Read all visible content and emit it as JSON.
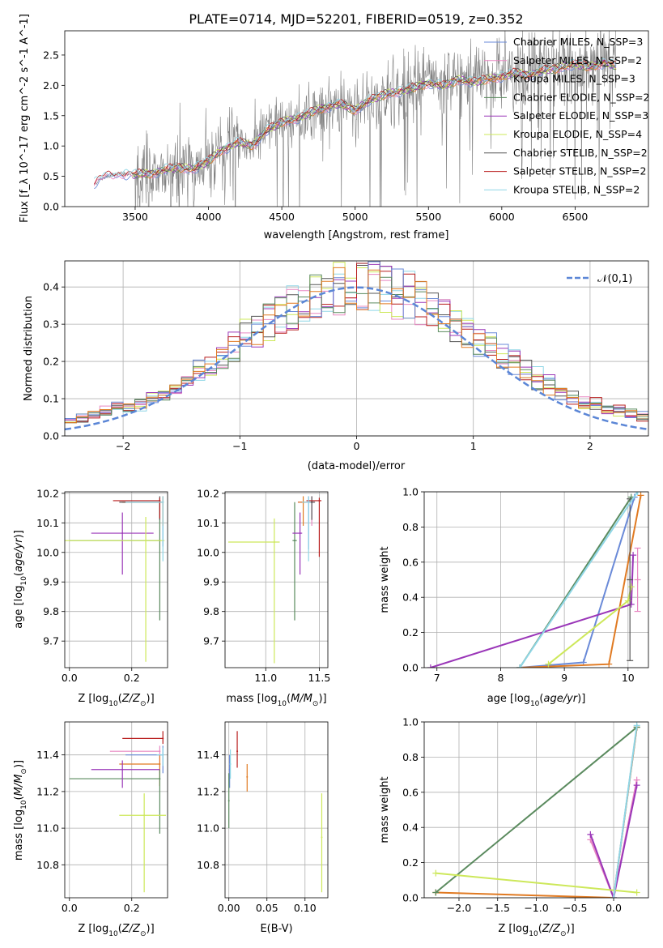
{
  "figure": {
    "title": "PLATE=0714, MJD=52201, FIBERID=0519, z=0.352"
  },
  "chart_data": [
    {
      "id": "spectrum",
      "type": "line",
      "xlabel": "wavelength [Angstrom, rest frame]",
      "ylabel": "Flux [f_λ 10^-17 erg cm^-2 s^-1 A^-1]",
      "xlim": [
        3020,
        7000
      ],
      "ylim": [
        0,
        2.9
      ],
      "xticks": [
        3500,
        4000,
        4500,
        5000,
        5500,
        6000,
        6500
      ],
      "yticks": [
        0.0,
        0.5,
        1.0,
        1.5,
        2.0,
        2.5
      ],
      "legend_position": "top-right",
      "data_color": "#808080",
      "model_x": [
        3220,
        3300,
        3400,
        3500,
        3600,
        3700,
        3800,
        3900,
        4000,
        4100,
        4200,
        4300,
        4400,
        4500,
        4600,
        4700,
        4800,
        4900,
        5000,
        5100,
        5200,
        5300,
        5400,
        5500,
        5600,
        5700,
        5800,
        5900,
        6000,
        6100,
        6200,
        6300,
        6400,
        6500,
        6600,
        6700,
        6780
      ],
      "model_y": [
        0.38,
        0.5,
        0.55,
        0.52,
        0.55,
        0.6,
        0.65,
        0.62,
        0.75,
        0.95,
        1.05,
        1.02,
        1.25,
        1.4,
        1.45,
        1.55,
        1.65,
        1.68,
        1.6,
        1.75,
        1.85,
        1.9,
        1.95,
        2.05,
        1.98,
        2.1,
        2.05,
        2.1,
        2.15,
        2.2,
        2.18,
        2.25,
        2.3,
        2.35,
        2.3,
        2.38,
        2.3
      ],
      "series": [
        {
          "name": "Chabrier MILES, N_SSP=3",
          "color": "#6a8ad8"
        },
        {
          "name": "Salpeter MILES, N_SSP=2",
          "color": "#e887c2"
        },
        {
          "name": "Kroupa MILES, N_SSP=3",
          "color": "#e07a22"
        },
        {
          "name": "Chabrier ELODIE, N_SSP=2",
          "color": "#5a8a5e"
        },
        {
          "name": "Salpeter ELODIE, N_SSP=3",
          "color": "#9a36b8"
        },
        {
          "name": "Kroupa ELODIE, N_SSP=4",
          "color": "#cde85a"
        },
        {
          "name": "Chabrier STELIB, N_SSP=2",
          "color": "#555555"
        },
        {
          "name": "Salpeter STELIB, N_SSP=2",
          "color": "#b81c1c"
        },
        {
          "name": "Kroupa STELIB, N_SSP=2",
          "color": "#8fd6e6"
        }
      ]
    },
    {
      "id": "residuals",
      "type": "line",
      "xlabel": "(data-model)/error",
      "ylabel": "Normed distribution",
      "xlim": [
        -2.5,
        2.5
      ],
      "ylim": [
        0,
        0.47
      ],
      "xticks": [
        -2,
        -1,
        0,
        1,
        2
      ],
      "yticks": [
        0.0,
        0.1,
        0.2,
        0.3,
        0.4
      ],
      "grid": true,
      "legend_position": "top-right",
      "gaussian_label": "𝒩(0,1)",
      "gaussian_color": "#5b86d6",
      "bin_width": 0.1,
      "hist_color_order": [
        "#8fd6e6",
        "#e887c2",
        "#cde85a",
        "#555555",
        "#9a36b8",
        "#b81c1c",
        "#6a8ad8",
        "#5a8a5e",
        "#e07a22"
      ]
    },
    {
      "id": "age_vs_Z",
      "type": "scatter",
      "xlabel": "Z [log10(Z/Z_sun)]",
      "ylabel": "age [log10(age/yr)]",
      "xlim": [
        -0.015,
        0.315
      ],
      "ylim": [
        9.61,
        10.205
      ],
      "xticks": [
        0.0,
        0.2
      ],
      "yticks": [
        9.7,
        9.8,
        9.9,
        10.0,
        10.1,
        10.2
      ],
      "grid": true,
      "points": [
        {
          "color": "#6a8ad8",
          "x": 0.3,
          "xerr": [
            0.13,
            0.0
          ],
          "y": 10.17,
          "yerr": [
            0.15,
            0.02
          ]
        },
        {
          "color": "#e887c2",
          "x": 0.3,
          "xerr": [
            0.13,
            0.0
          ],
          "y": 10.17,
          "yerr": [
            0.08,
            0.02
          ]
        },
        {
          "color": "#e07a22",
          "x": 0.3,
          "xerr": [
            0.13,
            0.0
          ],
          "y": 10.17,
          "yerr": [
            0.08,
            0.02
          ]
        },
        {
          "color": "#5a8a5e",
          "x": 0.29,
          "xerr": [
            0.29,
            0.0
          ],
          "y": 10.04,
          "yerr": [
            0.27,
            0.13
          ]
        },
        {
          "color": "#9a36b8",
          "x": 0.17,
          "xerr": [
            0.1,
            0.1
          ],
          "y": 10.065,
          "yerr": [
            0.14,
            0.07
          ]
        },
        {
          "color": "#cde85a",
          "x": 0.245,
          "xerr": [
            0.26,
            0.06
          ],
          "y": 10.04,
          "yerr": [
            0.41,
            0.08
          ]
        },
        {
          "color": "#555555",
          "x": 0.29,
          "xerr": [
            0.13,
            0.0
          ],
          "y": 10.17,
          "yerr": [
            0.06,
            0.02
          ]
        },
        {
          "color": "#b81c1c",
          "x": 0.29,
          "xerr": [
            0.15,
            0.0
          ],
          "y": 10.175,
          "yerr": [
            0.06,
            0.01
          ]
        },
        {
          "color": "#8fd6e6",
          "x": 0.3,
          "xerr": [
            0.12,
            0.0
          ],
          "y": 10.17,
          "yerr": [
            0.2,
            0.02
          ]
        }
      ]
    },
    {
      "id": "age_vs_mass",
      "type": "scatter",
      "xlabel": "mass [log10(M/M_sun)]",
      "xlim": [
        10.62,
        11.58
      ],
      "ylim": [
        9.61,
        10.205
      ],
      "xticks": [
        11.0,
        11.5
      ],
      "yticks": [
        9.7,
        9.8,
        9.9,
        10.0,
        10.1,
        10.2
      ],
      "grid": true,
      "points": [
        {
          "color": "#6a8ad8",
          "x": 11.4,
          "xerr": [
            0.1,
            0.02
          ],
          "y": 10.17,
          "yerr": [
            0.16,
            0.02
          ]
        },
        {
          "color": "#e887c2",
          "x": 11.43,
          "xerr": [
            0.13,
            0.02
          ],
          "y": 10.17,
          "yerr": [
            0.08,
            0.02
          ]
        },
        {
          "color": "#e07a22",
          "x": 11.35,
          "xerr": [
            0.05,
            0.03
          ],
          "y": 10.17,
          "yerr": [
            0.08,
            0.02
          ]
        },
        {
          "color": "#5a8a5e",
          "x": 11.27,
          "xerr": [
            0.02,
            0.02
          ],
          "y": 10.04,
          "yerr": [
            0.27,
            0.13
          ]
        },
        {
          "color": "#9a36b8",
          "x": 11.32,
          "xerr": [
            0.07,
            0.02
          ],
          "y": 10.065,
          "yerr": [
            0.14,
            0.07
          ]
        },
        {
          "color": "#cde85a",
          "x": 11.08,
          "xerr": [
            0.43,
            0.05
          ],
          "y": 10.035,
          "yerr": [
            0.41,
            0.08
          ]
        },
        {
          "color": "#555555",
          "x": 11.43,
          "xerr": [
            0.03,
            0.03
          ],
          "y": 10.17,
          "yerr": [
            0.06,
            0.02
          ]
        },
        {
          "color": "#b81c1c",
          "x": 11.5,
          "xerr": [
            0.12,
            0.02
          ],
          "y": 10.175,
          "yerr": [
            0.19,
            0.01
          ]
        },
        {
          "color": "#8fd6e6",
          "x": 11.4,
          "xerr": [
            0.06,
            0.02
          ],
          "y": 10.17,
          "yerr": [
            0.2,
            0.02
          ]
        }
      ]
    },
    {
      "id": "mass_weight_vs_age",
      "type": "line",
      "xlabel": "age [log10(age/yr)]",
      "ylabel": "mass weight",
      "xlim": [
        6.8,
        10.32
      ],
      "ylim": [
        0,
        1.0
      ],
      "xticks": [
        7,
        8,
        9,
        10
      ],
      "yticks": [
        0.0,
        0.2,
        0.4,
        0.6,
        0.8,
        1.0
      ],
      "grid": true,
      "series": [
        {
          "color": "#6a8ad8",
          "x": [
            8.3,
            9.3,
            10.1
          ],
          "y": [
            0.0,
            0.03,
            0.97
          ]
        },
        {
          "color": "#e887c2",
          "x": [
            10.15
          ],
          "y": [
            0.5
          ],
          "err": [
            0.18
          ]
        },
        {
          "color": "#e07a22",
          "x": [
            8.3,
            9.7,
            10.2
          ],
          "y": [
            0.0,
            0.02,
            0.98
          ]
        },
        {
          "color": "#5a8a5e",
          "x": [
            8.3,
            10.05
          ],
          "y": [
            0.0,
            0.97
          ]
        },
        {
          "color": "#9a36b8",
          "x": [
            6.9,
            10.05,
            10.08
          ],
          "y": [
            0.0,
            0.36,
            0.64
          ]
        },
        {
          "color": "#cde85a",
          "x": [
            8.75,
            10.0,
            10.05
          ],
          "y": [
            0.02,
            0.38,
            0.46
          ]
        },
        {
          "color": "#555555",
          "x": [
            10.03
          ],
          "y": [
            0.5
          ],
          "err": [
            0.46
          ]
        },
        {
          "color": "#8fd6e6",
          "x": [
            8.3,
            10.15
          ],
          "y": [
            0.0,
            1.0
          ]
        }
      ]
    },
    {
      "id": "mass_vs_Z",
      "type": "scatter",
      "xlabel": "Z [log10(Z/Z_sun)]",
      "ylabel": "mass [log10(M/M_sun)]",
      "xlim": [
        -0.015,
        0.315
      ],
      "ylim": [
        10.62,
        11.58
      ],
      "xticks": [
        0.0,
        0.2
      ],
      "yticks": [
        10.8,
        11.0,
        11.2,
        11.4
      ],
      "grid": true,
      "points": [
        {
          "color": "#6a8ad8",
          "x": 0.3,
          "xerr": [
            0.12,
            0.0
          ],
          "y": 11.4,
          "yerr": [
            0.1,
            0.05
          ]
        },
        {
          "color": "#e887c2",
          "x": 0.29,
          "xerr": [
            0.16,
            0.0
          ],
          "y": 11.42,
          "yerr": [
            0.12,
            0.03
          ]
        },
        {
          "color": "#e07a22",
          "x": 0.29,
          "xerr": [
            0.13,
            0.0
          ],
          "y": 11.35,
          "yerr": [
            0.12,
            0.05
          ]
        },
        {
          "color": "#5a8a5e",
          "x": 0.29,
          "xerr": [
            0.29,
            0.0
          ],
          "y": 11.27,
          "yerr": [
            0.3,
            0.05
          ]
        },
        {
          "color": "#9a36b8",
          "x": 0.17,
          "xerr": [
            0.1,
            0.12
          ],
          "y": 11.32,
          "yerr": [
            0.1,
            0.05
          ]
        },
        {
          "color": "#cde85a",
          "x": 0.24,
          "xerr": [
            0.08,
            0.07
          ],
          "y": 11.07,
          "yerr": [
            0.42,
            0.12
          ]
        },
        {
          "color": "#b81c1c",
          "x": 0.3,
          "xerr": [
            0.13,
            0.0
          ],
          "y": 11.49,
          "yerr": [
            0.03,
            0.04
          ]
        },
        {
          "color": "#8fd6e6",
          "x": 0.3,
          "xerr": [
            0.02,
            0.0
          ],
          "y": 11.4,
          "yerr": [
            0.06,
            0.04
          ]
        }
      ]
    },
    {
      "id": "mass_vs_ebv",
      "type": "scatter",
      "xlabel": "E(B-V)",
      "xlim": [
        -0.005,
        0.13
      ],
      "ylim": [
        10.62,
        11.58
      ],
      "xticks": [
        0.0,
        0.05,
        0.1
      ],
      "yticks": [
        10.8,
        11.0,
        11.2,
        11.4
      ],
      "grid": true,
      "points": [
        {
          "color": "#6a8ad8",
          "x": 0.001,
          "y": 11.32,
          "yerr": [
            0.1,
            0.08
          ]
        },
        {
          "color": "#e07a22",
          "x": 0.024,
          "y": 11.28,
          "yerr": [
            0.08,
            0.07
          ]
        },
        {
          "color": "#5a8a5e",
          "x": 0.0,
          "y": 11.15,
          "yerr": [
            0.15,
            0.15
          ]
        },
        {
          "color": "#b81c1c",
          "x": 0.011,
          "y": 11.42,
          "yerr": [
            0.09,
            0.11
          ]
        },
        {
          "color": "#8fd6e6",
          "x": 0.002,
          "y": 11.35,
          "yerr": [
            0.08,
            0.08
          ]
        },
        {
          "color": "#cde85a",
          "x": 0.122,
          "y": 10.95,
          "yerr": [
            0.3,
            0.24
          ]
        }
      ]
    },
    {
      "id": "mass_weight_vs_Z",
      "type": "line",
      "xlabel": "Z [log10(Z/Z_sun)]",
      "ylabel": "mass weight",
      "xlim": [
        -2.45,
        0.45
      ],
      "ylim": [
        0,
        1.0
      ],
      "xticks": [
        -2.0,
        -1.5,
        -1.0,
        -0.5,
        0.0
      ],
      "yticks": [
        0.0,
        0.2,
        0.4,
        0.6,
        0.8,
        1.0
      ],
      "grid": true,
      "series": [
        {
          "color": "#6a8ad8",
          "x": [
            0.0,
            0.3
          ],
          "y": [
            0.0,
            0.97
          ]
        },
        {
          "color": "#e887c2",
          "x": [
            -0.3,
            0.0,
            0.3
          ],
          "y": [
            0.33,
            0.0,
            0.67
          ]
        },
        {
          "color": "#e07a22",
          "x": [
            -2.3,
            0.0,
            0.3
          ],
          "y": [
            0.03,
            0.0,
            0.97
          ]
        },
        {
          "color": "#5a8a5e",
          "x": [
            -2.3,
            0.3
          ],
          "y": [
            0.03,
            0.97
          ]
        },
        {
          "color": "#9a36b8",
          "x": [
            -0.3,
            0.0,
            0.3
          ],
          "y": [
            0.36,
            0.0,
            0.64
          ]
        },
        {
          "color": "#cde85a",
          "x": [
            -2.3,
            0.3
          ],
          "y": [
            0.14,
            0.03
          ]
        },
        {
          "color": "#8fd6e6",
          "x": [
            0.0,
            0.3
          ],
          "y": [
            0.0,
            0.98
          ]
        }
      ]
    }
  ]
}
